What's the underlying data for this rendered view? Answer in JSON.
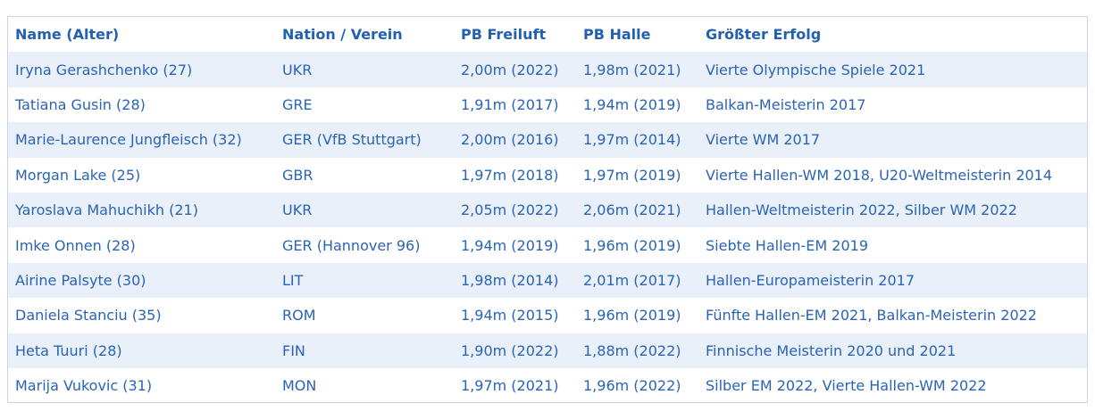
{
  "table": {
    "headers": [
      "Name (Alter)",
      "Nation / Verein",
      "PB Freiluft",
      "PB Halle",
      "Größter Erfolg"
    ],
    "rows": [
      [
        "Iryna Gerashchenko (27)",
        "UKR",
        "2,00m (2022)",
        "1,98m (2021)",
        "Vierte Olympische Spiele 2021"
      ],
      [
        "Tatiana Gusin (28)",
        "GRE",
        "1,91m (2017)",
        "1,94m (2019)",
        "Balkan-Meisterin 2017"
      ],
      [
        "Marie-Laurence Jungfleisch (32)",
        "GER (VfB Stuttgart)",
        "2,00m (2016)",
        "1,97m (2014)",
        "Vierte WM 2017"
      ],
      [
        "Morgan Lake (25)",
        "GBR",
        "1,97m (2018)",
        "1,97m (2019)",
        "Vierte Hallen-WM 2018, U20-Weltmeisterin 2014"
      ],
      [
        "Yaroslava Mahuchikh (21)",
        "UKR",
        "2,05m (2022)",
        "2,06m (2021)",
        "Hallen-Weltmeisterin 2022, Silber WM 2022"
      ],
      [
        "Imke Onnen (28)",
        "GER (Hannover 96)",
        "1,94m (2019)",
        "1,96m (2019)",
        "Siebte Hallen-EM 2019"
      ],
      [
        "Airine Palsyte (30)",
        "LIT",
        "1,98m (2014)",
        "2,01m (2017)",
        "Hallen-Europameisterin 2017"
      ],
      [
        "Daniela Stanciu (35)",
        "ROM",
        "1,94m (2015)",
        "1,96m (2019)",
        "Fünfte Hallen-EM 2021, Balkan-Meisterin 2022"
      ],
      [
        "Heta Tuuri (28)",
        "FIN",
        "1,90m (2022)",
        "1,88m (2022)",
        "Finnische Meisterin 2020 und 2021"
      ],
      [
        "Marija Vukovic (31)",
        "MON",
        "1,97m (2021)",
        "1,96m (2022)",
        "Silber EM 2022, Vierte Hallen-WM 2022"
      ]
    ]
  },
  "colors": {
    "text": "#2a64b4",
    "stripe": "#e9f0fa",
    "border": "#c9d6ea"
  }
}
